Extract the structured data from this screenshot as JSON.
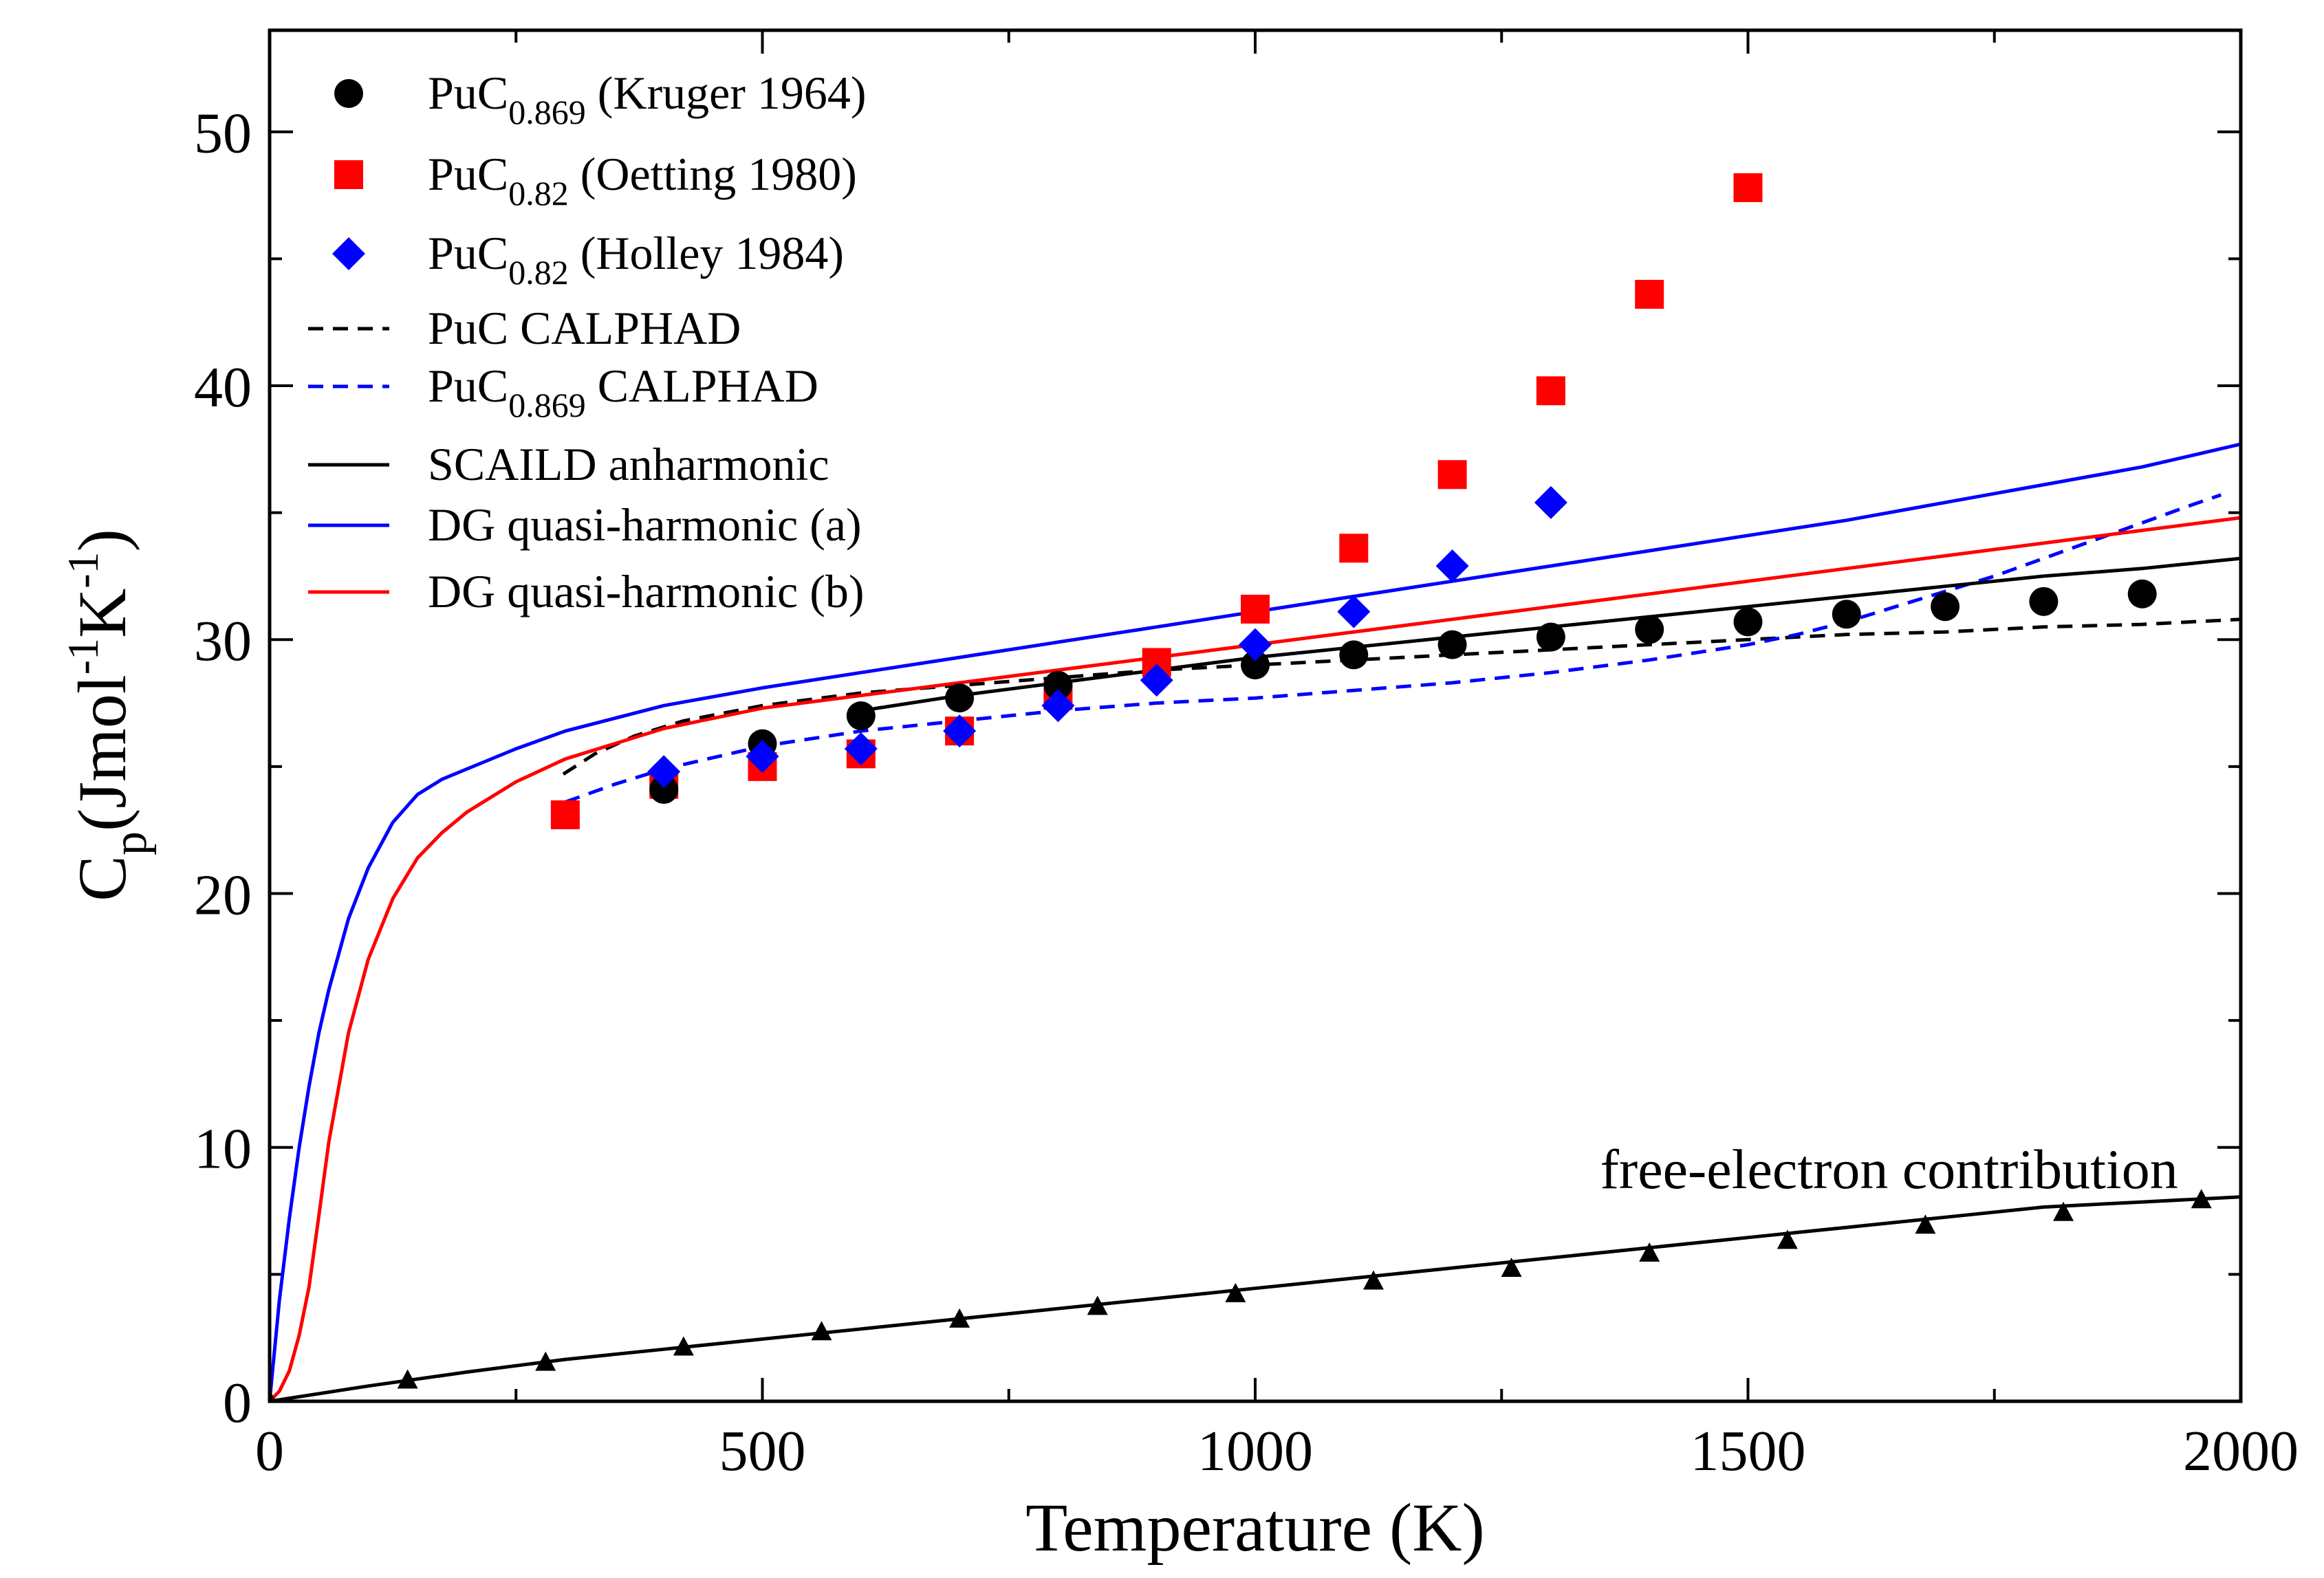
{
  "chart_data": {
    "type": "scatter",
    "xlabel": "Temperature (K)",
    "ylabel": {
      "main": "C",
      "sub": "p",
      "unit_open": "(Jmol",
      "exp1": "-1",
      "unit_mid": "K",
      "exp2": "-1",
      "unit_close": ")"
    },
    "xlim": [
      0,
      2000
    ],
    "ylim": [
      0,
      54
    ],
    "xticks": [
      0,
      500,
      1000,
      1500,
      2000
    ],
    "xtick_labels": [
      "0",
      "500",
      "1000",
      "1500",
      "2000"
    ],
    "yticks": [
      0,
      10,
      20,
      30,
      40,
      50
    ],
    "ytick_labels": [
      "0",
      "10",
      "20",
      "30",
      "40",
      "50"
    ],
    "grid": false,
    "legend_position": "top-left",
    "annotations": [
      {
        "text": "free-electron contribution",
        "x": 1350,
        "y": 8.4
      }
    ],
    "series": [
      {
        "name": "kruger",
        "label": {
          "base": "PuC",
          "sub": "0.869",
          "rest": " (Kruger 1964)"
        },
        "kind": "marker",
        "marker": "circle",
        "color": "#000000",
        "x": [
          400,
          500,
          600,
          700,
          800,
          1000,
          1100,
          1200,
          1300,
          1400,
          1500,
          1600,
          1700,
          1800,
          1900
        ],
        "y": [
          24.1,
          25.9,
          27.0,
          27.7,
          28.2,
          29.0,
          29.4,
          29.8,
          30.1,
          30.4,
          30.7,
          31.0,
          31.3,
          31.5,
          31.8
        ]
      },
      {
        "name": "oetting",
        "label": {
          "base": "PuC",
          "sub": "0.82",
          "rest": " (Oetting 1980)"
        },
        "kind": "marker",
        "marker": "square",
        "color": "#ff0000",
        "x": [
          300,
          400,
          500,
          600,
          700,
          800,
          900,
          1000,
          1100,
          1200,
          1300,
          1400,
          1500
        ],
        "y": [
          23.1,
          24.3,
          25.0,
          25.5,
          26.4,
          27.8,
          29.1,
          31.2,
          33.6,
          36.5,
          39.8,
          43.6,
          47.8
        ]
      },
      {
        "name": "holley",
        "label": {
          "base": "PuC",
          "sub": "0.82",
          "rest": " (Holley 1984)"
        },
        "kind": "marker",
        "marker": "diamond",
        "color": "#0000ff",
        "x": [
          400,
          500,
          600,
          700,
          800,
          900,
          1000,
          1100,
          1200,
          1300
        ],
        "y": [
          24.8,
          25.4,
          25.7,
          26.4,
          27.4,
          28.4,
          29.8,
          31.1,
          32.9,
          35.4
        ]
      },
      {
        "name": "puc-calphad",
        "label": {
          "base": "PuC CALPHAD",
          "sub": "",
          "rest": ""
        },
        "kind": "line",
        "dash": true,
        "color": "#000000",
        "x": [
          298,
          330,
          370,
          420,
          500,
          600,
          700,
          800,
          900,
          1000,
          1100,
          1200,
          1300,
          1400,
          1500,
          1600,
          1700,
          1800,
          1900,
          2000
        ],
        "y": [
          24.7,
          25.5,
          26.2,
          26.8,
          27.4,
          27.9,
          28.2,
          28.5,
          28.8,
          29.0,
          29.2,
          29.4,
          29.6,
          29.8,
          30.0,
          30.2,
          30.3,
          30.5,
          30.6,
          30.8
        ]
      },
      {
        "name": "puc0869-calphad",
        "label": {
          "base": "PuC",
          "sub": "0.869",
          "rest": " CALPHAD"
        },
        "kind": "line",
        "dash": true,
        "color": "#0000ff",
        "x": [
          300,
          350,
          400,
          500,
          600,
          700,
          800,
          900,
          1000,
          1100,
          1200,
          1300,
          1400,
          1500,
          1550,
          1600,
          1650,
          1700,
          1750,
          1800,
          1850,
          1900,
          1950,
          1980
        ],
        "y": [
          23.6,
          24.3,
          24.9,
          25.8,
          26.4,
          26.8,
          27.2,
          27.5,
          27.7,
          28.0,
          28.3,
          28.7,
          29.2,
          29.8,
          30.2,
          30.7,
          31.3,
          31.9,
          32.5,
          33.2,
          33.9,
          34.6,
          35.3,
          35.7
        ]
      },
      {
        "name": "scaild",
        "label": {
          "base": "SCAILD anharmonic",
          "sub": "",
          "rest": ""
        },
        "kind": "line",
        "dash": false,
        "color": "#000000",
        "x": [
          600,
          700,
          800,
          900,
          1000,
          1100,
          1200,
          1300,
          1400,
          1500,
          1600,
          1700,
          1800,
          1900,
          2000
        ],
        "y": [
          27.2,
          27.8,
          28.3,
          28.8,
          29.3,
          29.7,
          30.1,
          30.5,
          30.9,
          31.3,
          31.7,
          32.1,
          32.5,
          32.8,
          33.2
        ]
      },
      {
        "name": "dg-a",
        "label": {
          "base": "DG quasi-harmonic (a)",
          "sub": "",
          "rest": ""
        },
        "kind": "line",
        "dash": false,
        "color": "#0000ff",
        "x": [
          0,
          10,
          20,
          30,
          40,
          50,
          60,
          80,
          100,
          125,
          150,
          175,
          200,
          250,
          300,
          400,
          500,
          600,
          700,
          800,
          900,
          1000,
          1100,
          1200,
          1300,
          1400,
          1500,
          1600,
          1700,
          1800,
          1900,
          2000
        ],
        "y": [
          0,
          4.0,
          7.2,
          10.0,
          12.4,
          14.5,
          16.2,
          19.0,
          21.0,
          22.8,
          23.9,
          24.5,
          24.9,
          25.7,
          26.4,
          27.4,
          28.1,
          28.7,
          29.3,
          29.9,
          30.5,
          31.1,
          31.7,
          32.3,
          32.9,
          33.5,
          34.1,
          34.7,
          35.4,
          36.1,
          36.8,
          37.7
        ]
      },
      {
        "name": "dg-b",
        "label": {
          "base": "DG quasi-harmonic (b)",
          "sub": "",
          "rest": ""
        },
        "kind": "line",
        "dash": false,
        "color": "#ff0000",
        "x": [
          0,
          10,
          20,
          30,
          40,
          50,
          60,
          80,
          100,
          125,
          150,
          175,
          200,
          250,
          300,
          400,
          500,
          600,
          700,
          800,
          900,
          1000,
          1100,
          1200,
          1300,
          1400,
          1500,
          1600,
          1700,
          1800,
          1900,
          2000
        ],
        "y": [
          0,
          0.4,
          1.2,
          2.6,
          4.5,
          7.3,
          10.2,
          14.5,
          17.4,
          19.8,
          21.4,
          22.4,
          23.2,
          24.4,
          25.3,
          26.5,
          27.3,
          27.8,
          28.3,
          28.8,
          29.3,
          29.8,
          30.3,
          30.8,
          31.3,
          31.8,
          32.3,
          32.8,
          33.3,
          33.8,
          34.3,
          34.8
        ]
      },
      {
        "name": "free-electron",
        "label": null,
        "kind": "line-marker",
        "marker": "triangle",
        "dash": false,
        "color": "#000000",
        "x": [
          0,
          140,
          280,
          420,
          560,
          700,
          840,
          980,
          1120,
          1260,
          1400,
          1540,
          1680,
          1820,
          1960
        ],
        "y": [
          0,
          0.8,
          1.5,
          2.1,
          2.7,
          3.2,
          3.7,
          4.2,
          4.7,
          5.2,
          5.8,
          6.3,
          6.9,
          7.4,
          7.9
        ],
        "line_x": [
          0,
          100,
          200,
          300,
          400,
          500,
          600,
          700,
          800,
          900,
          1000,
          1100,
          1200,
          1300,
          1400,
          1500,
          1600,
          1700,
          1800,
          1900,
          2000
        ],
        "line_y": [
          0,
          0.6,
          1.15,
          1.65,
          2.05,
          2.45,
          2.85,
          3.25,
          3.65,
          4.05,
          4.45,
          4.85,
          5.25,
          5.65,
          6.05,
          6.45,
          6.85,
          7.25,
          7.65,
          7.85,
          8.05
        ]
      }
    ]
  }
}
